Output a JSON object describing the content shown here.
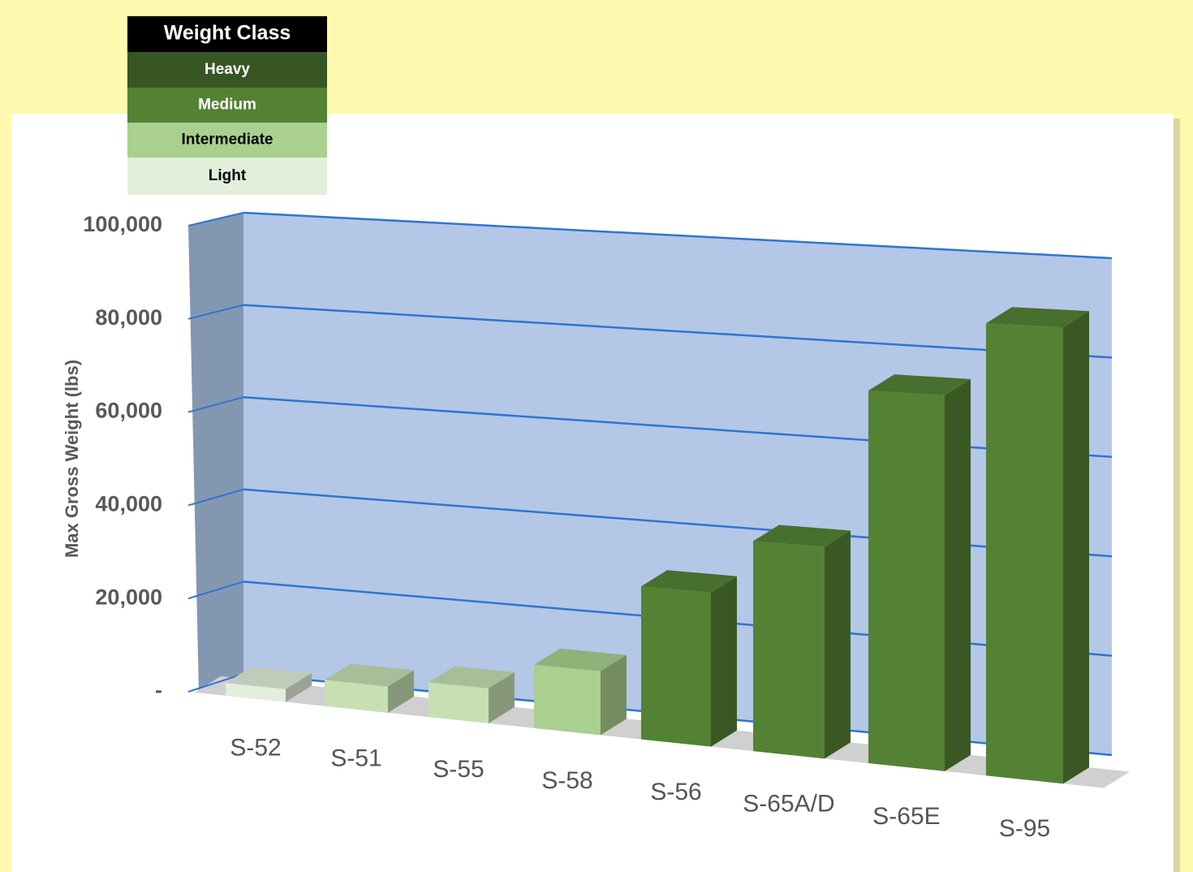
{
  "chart_data": {
    "type": "bar3d",
    "y_label": "Max Gross Weight (lbs)",
    "categories": [
      "S-52",
      "S-51",
      "S-55",
      "S-58",
      "S-56",
      "S-65A/D",
      "S-65E",
      "S-95"
    ],
    "values": [
      2700,
      5500,
      7200,
      13000,
      31000,
      42000,
      73500,
      88000
    ],
    "colors": [
      "#e2efda",
      "#c6e0b4",
      "#c6e0b4",
      "#a9d08e",
      "#548235",
      "#548235",
      "#548235",
      "#548235"
    ],
    "ylim": [
      0,
      100000
    ],
    "yticks": [
      {
        "value": 0,
        "label": "-"
      },
      {
        "value": 20000,
        "label": "20,000"
      },
      {
        "value": 40000,
        "label": "40,000"
      },
      {
        "value": 60000,
        "label": "60,000"
      },
      {
        "value": 80000,
        "label": "80,000"
      },
      {
        "value": 100000,
        "label": "100,000"
      }
    ],
    "grid": true,
    "legend_title": "Weight Class",
    "legend": [
      {
        "label": "Heavy",
        "color": "#375623"
      },
      {
        "label": "Medium",
        "color": "#548235"
      },
      {
        "label": "Intermediate",
        "color": "#a9d08e"
      },
      {
        "label": "Light",
        "color": "#e2efda"
      }
    ]
  }
}
